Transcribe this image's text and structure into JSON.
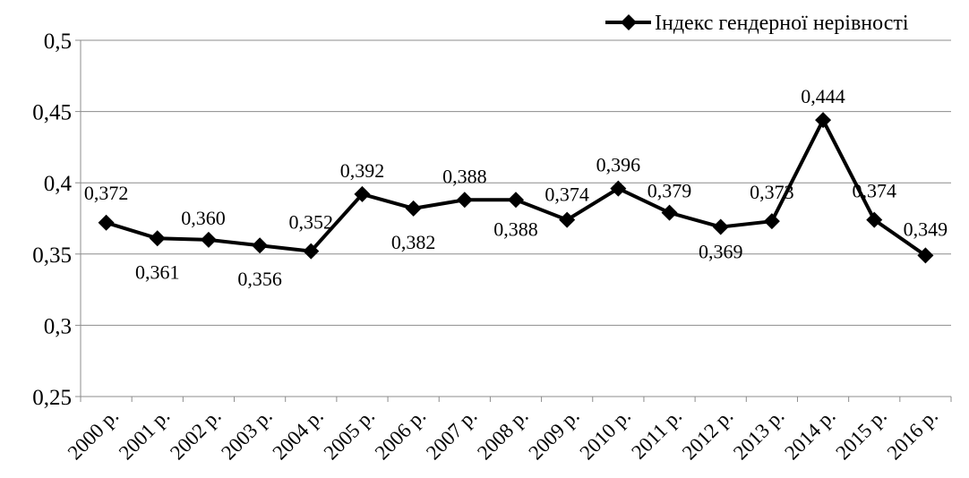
{
  "chart_data": {
    "type": "line",
    "title": "",
    "xlabel": "",
    "ylabel": "",
    "categories": [
      "2000 р.",
      "2001 р.",
      "2002 р.",
      "2003 р.",
      "2004 р.",
      "2005 р.",
      "2006 р.",
      "2007 р.",
      "2008 р.",
      "2009 р.",
      "2010 р.",
      "2011 р.",
      "2012 р.",
      "2013 р.",
      "2014 р.",
      "2015 р.",
      "2016 р."
    ],
    "series": [
      {
        "name": "Індекс гендерної нерівності",
        "values": [
          0.372,
          0.361,
          0.36,
          0.356,
          0.352,
          0.392,
          0.382,
          0.388,
          0.388,
          0.374,
          0.396,
          0.379,
          0.369,
          0.373,
          0.444,
          0.374,
          0.349
        ],
        "labels": [
          "0,372",
          "0,361",
          "0,360",
          "0,356",
          "0,352",
          "0,392",
          "0,382",
          "0,388",
          "0,388",
          "0,374",
          "0,396",
          "0,379",
          "0,369",
          "0,373",
          "0,444",
          "0,374",
          "0,349"
        ],
        "color": "#000000",
        "marker": "diamond"
      }
    ],
    "ylim": [
      0.25,
      0.5
    ],
    "yticks": [
      0.25,
      0.3,
      0.35,
      0.4,
      0.45,
      0.5
    ],
    "ytick_labels": [
      "0,25",
      "0,3",
      "0,35",
      "0,4",
      "0,45",
      "0,5"
    ],
    "grid": true,
    "legend": "top-right"
  }
}
